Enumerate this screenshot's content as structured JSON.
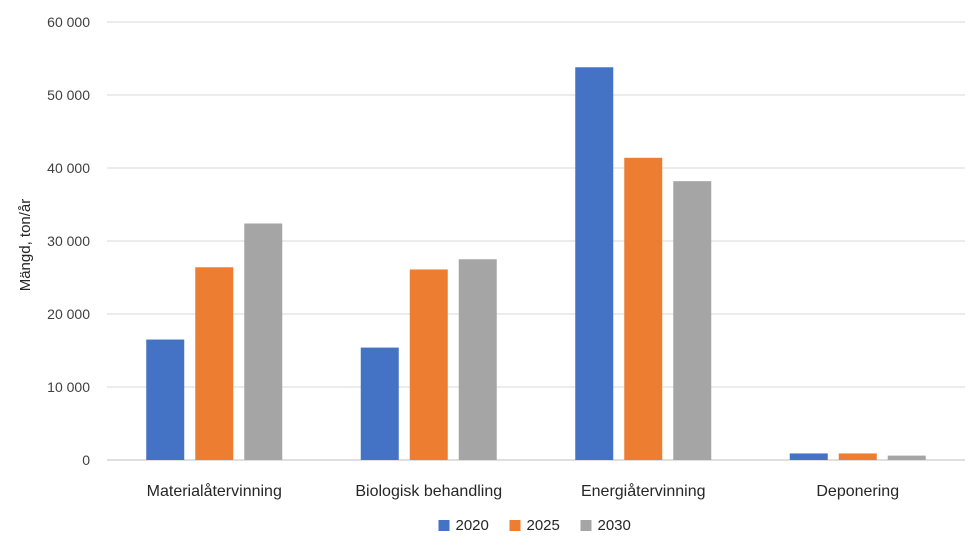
{
  "chart_data": {
    "type": "bar",
    "ylabel": "Mängd, ton/år",
    "xlabel": "",
    "ylim": [
      0,
      60000
    ],
    "yticks": [
      0,
      10000,
      20000,
      30000,
      40000,
      50000,
      60000
    ],
    "ytick_labels": [
      "0",
      "10 000",
      "20 000",
      "30 000",
      "40 000",
      "50 000",
      "60 000"
    ],
    "grid": true,
    "legend_position": "bottom",
    "categories": [
      "Materialåtervinning",
      "Biologisk behandling",
      "Energiåtervinning",
      "Deponering"
    ],
    "series": [
      {
        "name": "2020",
        "color": "#4472C4",
        "values": [
          16500,
          15400,
          53800,
          900
        ]
      },
      {
        "name": "2025",
        "color": "#ED7D31",
        "values": [
          26400,
          26100,
          41400,
          900
        ]
      },
      {
        "name": "2030",
        "color": "#A5A5A5",
        "values": [
          32400,
          27500,
          38200,
          600
        ]
      }
    ]
  }
}
